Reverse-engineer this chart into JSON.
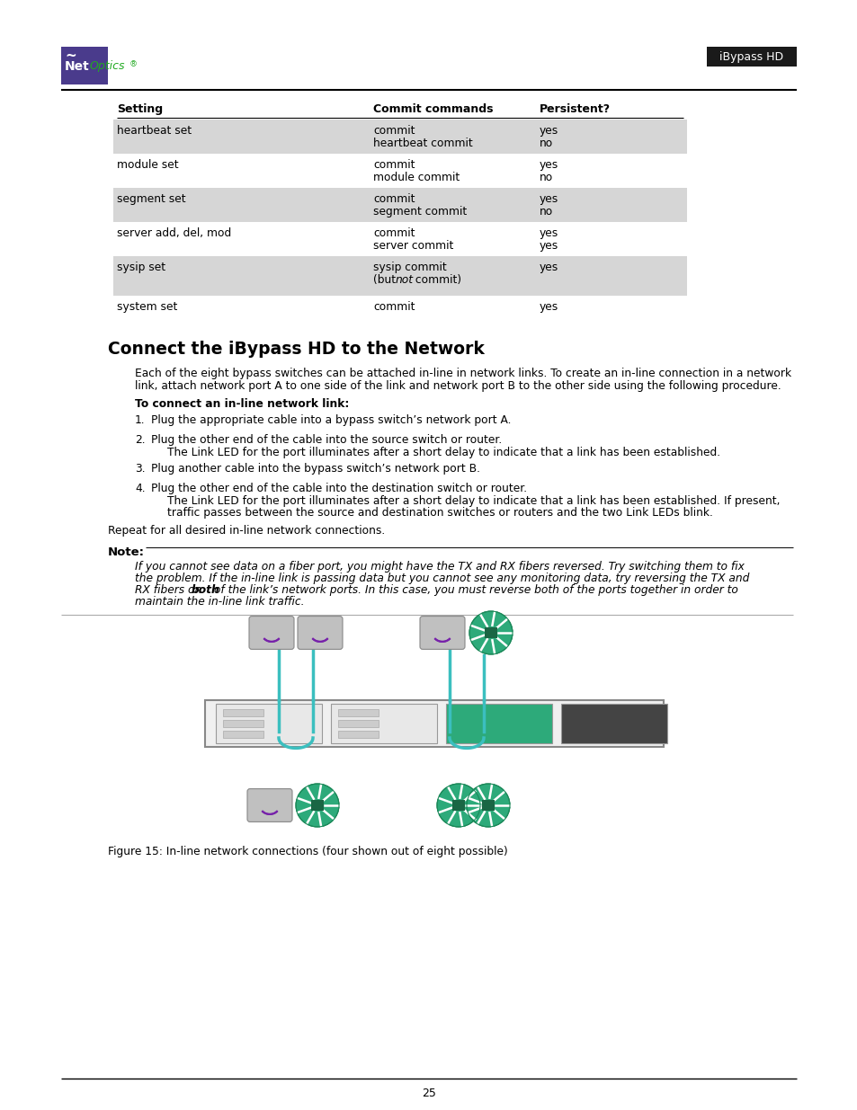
{
  "page_bg": "#ffffff",
  "logo_box_color": "#4a3b8c",
  "header_badge_bg": "#1a1a1a",
  "header_badge_text": "iBypass HD",
  "table_rows": [
    {
      "setting": "heartbeat set",
      "commit": [
        "commit",
        "heartbeat commit"
      ],
      "persistent": [
        "yes",
        "no"
      ],
      "shaded": true
    },
    {
      "setting": "module set",
      "commit": [
        "commit",
        "module commit"
      ],
      "persistent": [
        "yes",
        "no"
      ],
      "shaded": false
    },
    {
      "setting": "segment set",
      "commit": [
        "commit",
        "segment commit"
      ],
      "persistent": [
        "yes",
        "no"
      ],
      "shaded": true
    },
    {
      "setting": "server add, del, mod",
      "commit": [
        "commit",
        "server commit"
      ],
      "persistent": [
        "yes",
        "yes"
      ],
      "shaded": false
    },
    {
      "setting": "sysip set",
      "commit": [
        "sysip commit",
        "(but {not} commit)"
      ],
      "persistent": [
        "yes"
      ],
      "shaded": true
    },
    {
      "setting": "system set",
      "commit": [
        "commit"
      ],
      "persistent": [
        "yes"
      ],
      "shaded": false
    }
  ],
  "section_title": "Connect the iBypass HD to the Network",
  "body_text_1a": "Each of the eight bypass switches can be attached in-line in network links. To create an in-line connection in a network",
  "body_text_1b": "link, attach network port A to one side of the link and network port B to the other side using the following procedure.",
  "bold_subhead": "To connect an in-line network link:",
  "steps": [
    {
      "num": "1.",
      "main": "Plug the appropriate cable into a bypass switch’s network port A.",
      "sub": []
    },
    {
      "num": "2.",
      "main": "Plug the other end of the cable into the source switch or router.",
      "sub": [
        "The Link LED for the port illuminates after a short delay to indicate that a link has been established."
      ]
    },
    {
      "num": "3.",
      "main": "Plug another cable into the bypass switch’s network port B.",
      "sub": []
    },
    {
      "num": "4.",
      "main": "Plug the other end of the cable into the destination switch or router.",
      "sub": [
        "The Link LED for the port illuminates after a short delay to indicate that a link has been established. If present,",
        "traffic passes between the source and destination switches or routers and the two Link LEDs blink."
      ]
    }
  ],
  "repeat_text": "Repeat for all desired in-line network connections.",
  "note_label": "Note:",
  "note_lines": [
    "If you cannot see data on a fiber port, you might have the TX and RX fibers reversed. Try switching them to fix",
    "the problem. If the in-line link is passing data but you cannot see any monitoring data, try reversing the TX and",
    "RX fibers on {both} of the link’s network ports. In this case, you must reverse both of the ports together in order to",
    "maintain the in-line link traffic."
  ],
  "figure_caption": "Figure 15: In-line network connections (four shown out of eight possible)",
  "page_number": "25",
  "teal": "#3bbfbf",
  "shade_color": "#d6d6d6",
  "green_icon": "#2daa7a"
}
